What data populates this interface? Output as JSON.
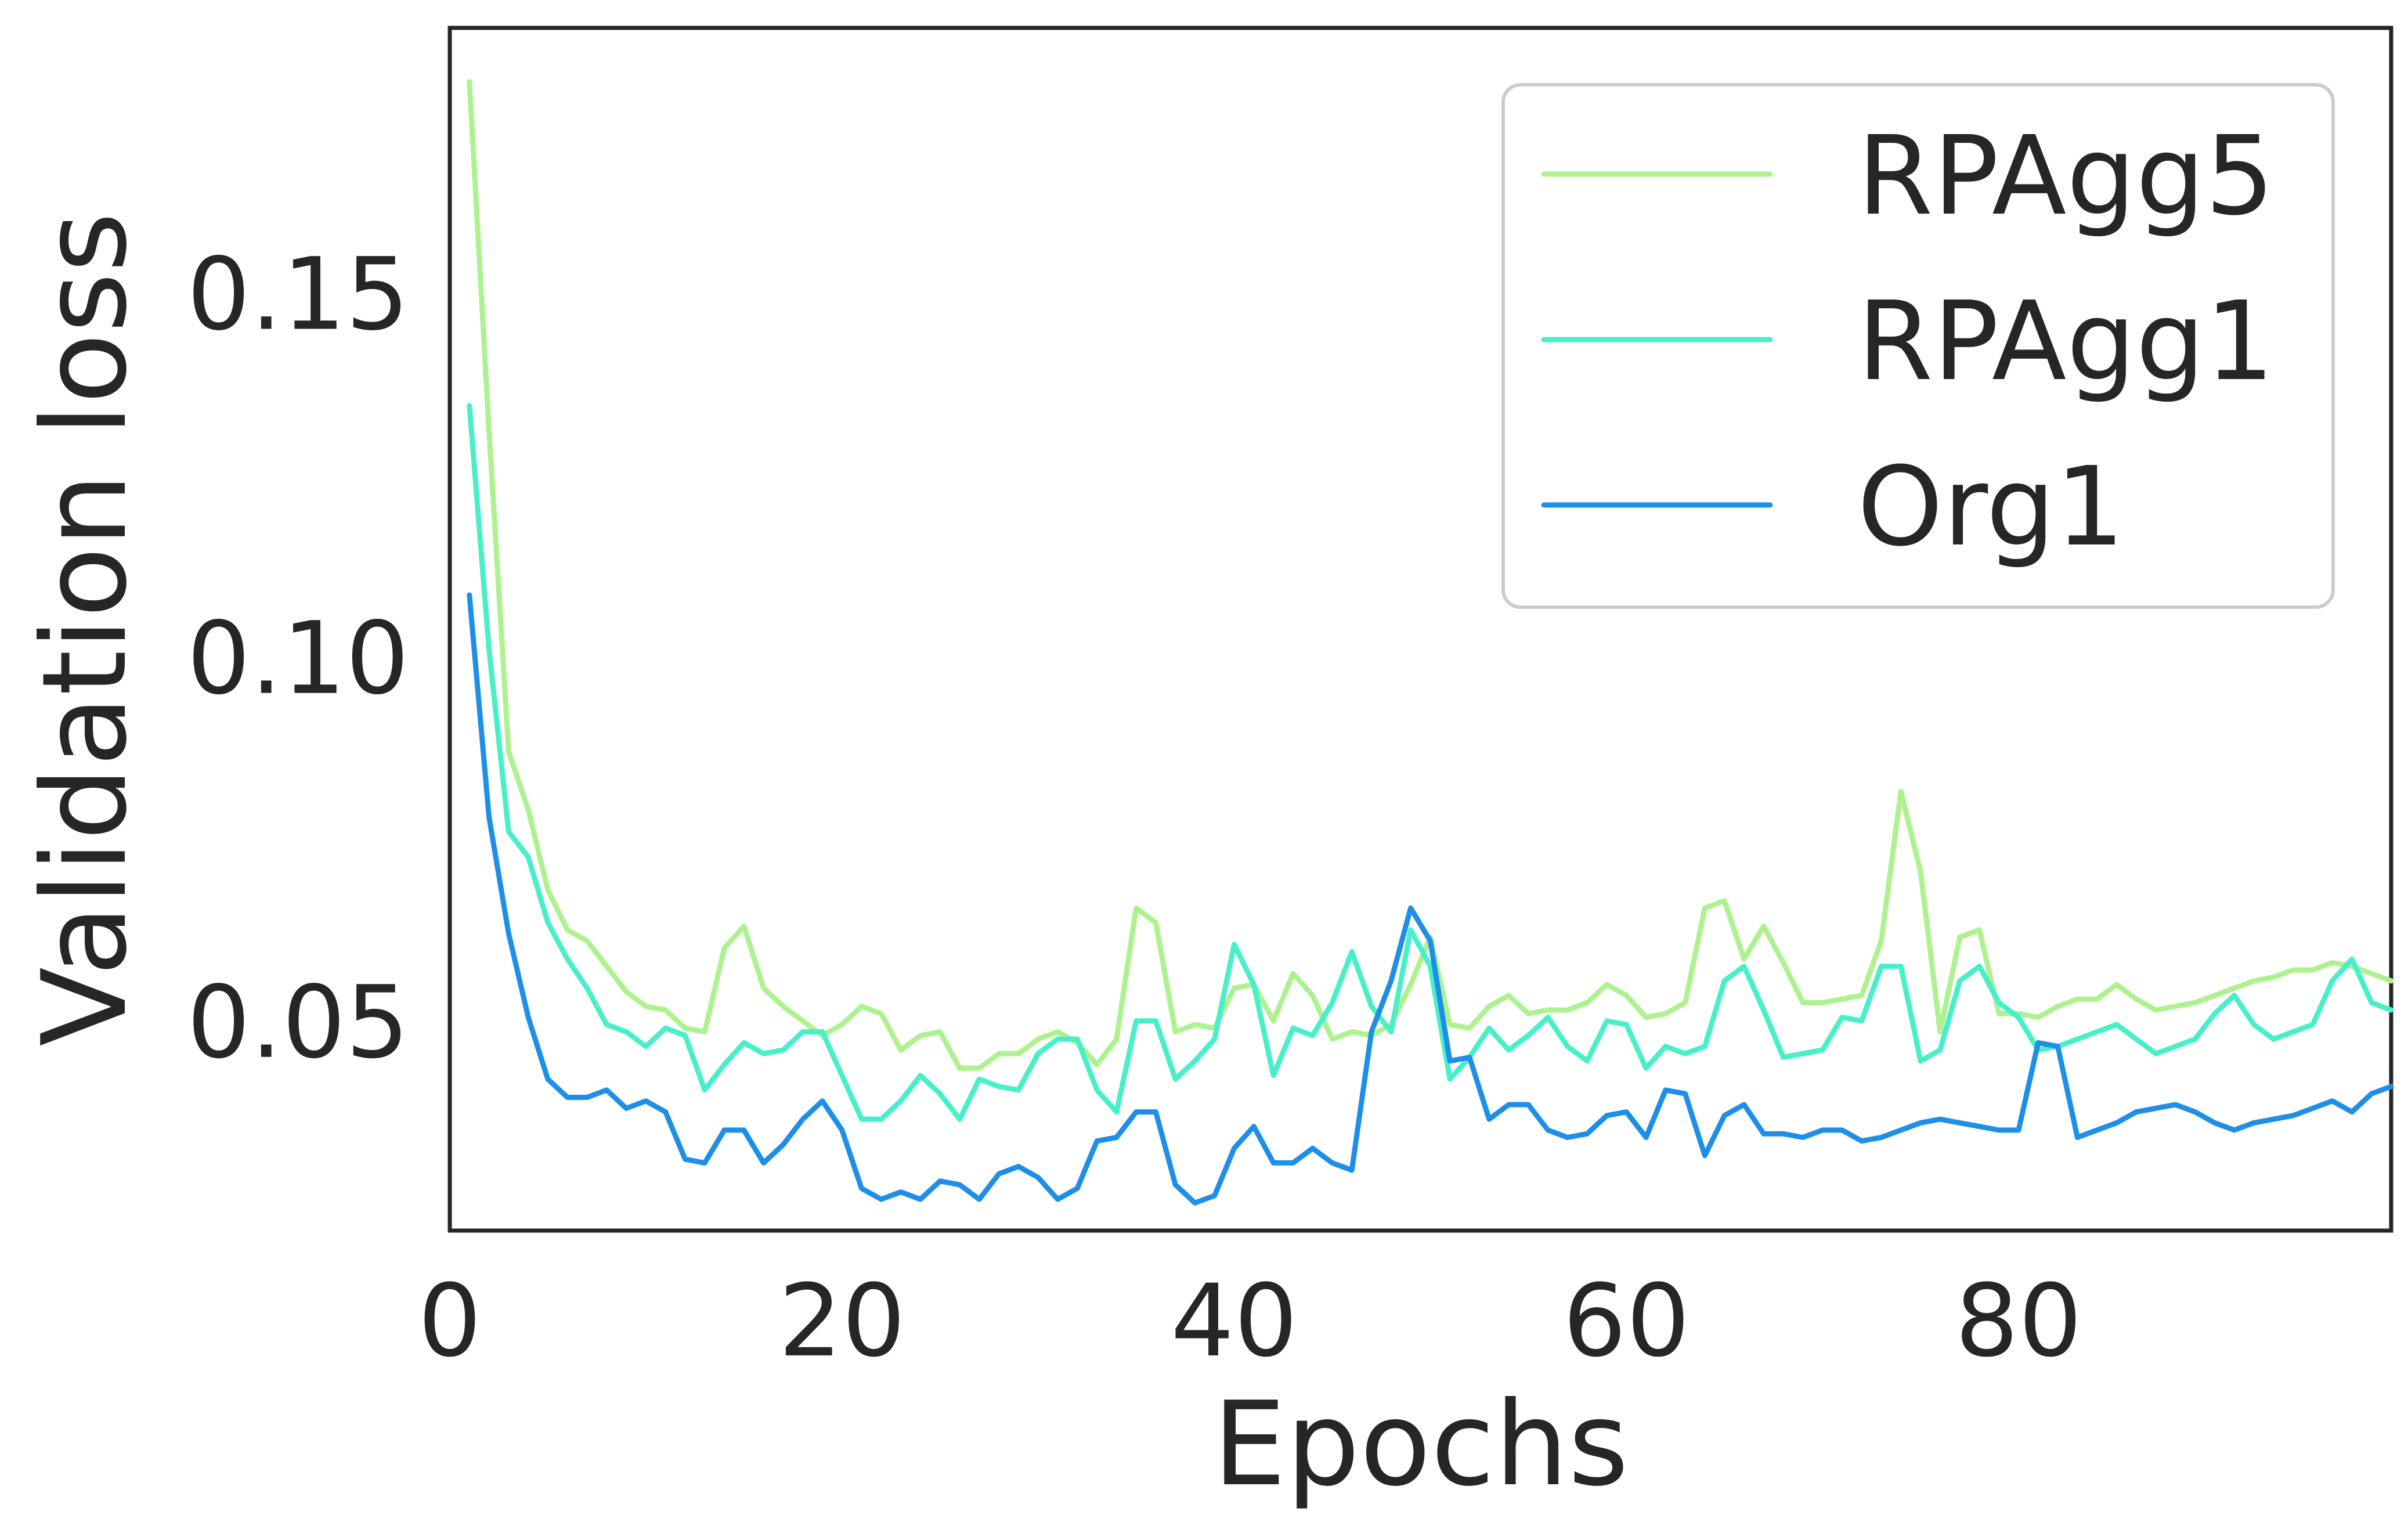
{
  "chart_data": {
    "type": "line",
    "title": "",
    "xlabel": "Epochs",
    "ylabel": "Validation loss",
    "xlim": [
      0,
      99
    ],
    "ylim": [
      0.0212,
      0.1864
    ],
    "xticks": [
      0,
      20,
      40,
      60,
      80
    ],
    "xtick_labels": [
      "0",
      "20",
      "40",
      "60",
      "80"
    ],
    "yticks": [
      0.05,
      0.1,
      0.15
    ],
    "ytick_labels": [
      "0.05",
      "0.10",
      "0.15"
    ],
    "grid": false,
    "legend_position": "top-right",
    "series": [
      {
        "name": "RPAgg5",
        "color": "#ADF28F",
        "x": [
          1,
          2,
          3,
          4,
          5,
          6,
          7,
          8,
          9,
          10,
          11,
          12,
          13,
          14,
          15,
          16,
          17,
          18,
          19,
          20,
          21,
          22,
          23,
          24,
          25,
          26,
          27,
          28,
          29,
          30,
          31,
          32,
          33,
          34,
          35,
          36,
          37,
          38,
          39,
          40,
          41,
          42,
          43,
          44,
          45,
          46,
          47,
          48,
          49,
          50,
          51,
          52,
          53,
          54,
          55,
          56,
          57,
          58,
          59,
          60,
          61,
          62,
          63,
          64,
          65,
          66,
          67,
          68,
          69,
          70,
          71,
          72,
          73,
          74,
          75,
          76,
          77,
          78,
          79,
          80,
          81,
          82,
          83,
          84,
          85,
          86,
          87,
          88,
          89,
          90,
          91,
          92,
          93,
          94,
          95,
          96,
          97,
          98,
          99
        ],
        "values": [
          0.179,
          0.131,
          0.087,
          0.079,
          0.068,
          0.0625,
          0.061,
          0.0575,
          0.054,
          0.052,
          0.0515,
          0.049,
          0.0485,
          0.06,
          0.063,
          0.0545,
          0.052,
          0.05,
          0.048,
          0.0495,
          0.052,
          0.051,
          0.046,
          0.048,
          0.0485,
          0.0435,
          0.0435,
          0.0455,
          0.0455,
          0.0475,
          0.0485,
          0.047,
          0.044,
          0.0475,
          0.0655,
          0.0635,
          0.0485,
          0.0495,
          0.049,
          0.0545,
          0.055,
          0.05,
          0.0565,
          0.0535,
          0.0475,
          0.0485,
          0.048,
          0.0495,
          0.055,
          0.0615,
          0.0495,
          0.049,
          0.052,
          0.0535,
          0.051,
          0.0515,
          0.0515,
          0.0525,
          0.055,
          0.0535,
          0.0505,
          0.051,
          0.0525,
          0.0655,
          0.0665,
          0.0585,
          0.063,
          0.058,
          0.0525,
          0.0525,
          0.053,
          0.0535,
          0.061,
          0.0815,
          0.0705,
          0.0485,
          0.0615,
          0.0625,
          0.051,
          0.051,
          0.0505,
          0.052,
          0.053,
          0.053,
          0.055,
          0.053,
          0.0515,
          0.052,
          0.0525,
          0.0535,
          0.0545,
          0.0555,
          0.056,
          0.057,
          0.057,
          0.058,
          0.0575,
          0.0565,
          0.0555
        ]
      },
      {
        "name": "RPAgg1",
        "color": "#47F0C8",
        "x": [
          1,
          2,
          3,
          4,
          5,
          6,
          7,
          8,
          9,
          10,
          11,
          12,
          13,
          14,
          15,
          16,
          17,
          18,
          19,
          20,
          21,
          22,
          23,
          24,
          25,
          26,
          27,
          28,
          29,
          30,
          31,
          32,
          33,
          34,
          35,
          36,
          37,
          38,
          39,
          40,
          41,
          42,
          43,
          44,
          45,
          46,
          47,
          48,
          49,
          50,
          51,
          52,
          53,
          54,
          55,
          56,
          57,
          58,
          59,
          60,
          61,
          62,
          63,
          64,
          65,
          66,
          67,
          68,
          69,
          70,
          71,
          72,
          73,
          74,
          75,
          76,
          77,
          78,
          79,
          80,
          81,
          82,
          83,
          84,
          85,
          86,
          87,
          88,
          89,
          90,
          91,
          92,
          93,
          94,
          95,
          96,
          97,
          98,
          99
        ],
        "values": [
          0.1345,
          0.101,
          0.076,
          0.0725,
          0.0635,
          0.0585,
          0.0545,
          0.0495,
          0.0485,
          0.0465,
          0.049,
          0.048,
          0.0405,
          0.044,
          0.047,
          0.0455,
          0.046,
          0.0485,
          0.0485,
          0.0425,
          0.0365,
          0.0365,
          0.039,
          0.0425,
          0.04,
          0.0365,
          0.042,
          0.041,
          0.0405,
          0.0455,
          0.0475,
          0.0475,
          0.0405,
          0.0375,
          0.05,
          0.05,
          0.042,
          0.0445,
          0.0475,
          0.0605,
          0.055,
          0.0425,
          0.049,
          0.048,
          0.0525,
          0.0595,
          0.052,
          0.0485,
          0.0625,
          0.0575,
          0.042,
          0.045,
          0.049,
          0.046,
          0.048,
          0.0505,
          0.0465,
          0.0445,
          0.05,
          0.0495,
          0.0435,
          0.0465,
          0.0455,
          0.0465,
          0.0555,
          0.0575,
          0.0515,
          0.045,
          0.0455,
          0.046,
          0.0505,
          0.05,
          0.0575,
          0.0575,
          0.0445,
          0.046,
          0.0555,
          0.0575,
          0.0525,
          0.0505,
          0.046,
          0.0465,
          0.0475,
          0.0485,
          0.0495,
          0.0475,
          0.0455,
          0.0465,
          0.0475,
          0.051,
          0.0535,
          0.0495,
          0.0475,
          0.0485,
          0.0495,
          0.0555,
          0.0585,
          0.0525,
          0.0515
        ]
      },
      {
        "name": "Org1",
        "color": "#1E8FE8",
        "x": [
          1,
          2,
          3,
          4,
          5,
          6,
          7,
          8,
          9,
          10,
          11,
          12,
          13,
          14,
          15,
          16,
          17,
          18,
          19,
          20,
          21,
          22,
          23,
          24,
          25,
          26,
          27,
          28,
          29,
          30,
          31,
          32,
          33,
          34,
          35,
          36,
          37,
          38,
          39,
          40,
          41,
          42,
          43,
          44,
          45,
          46,
          47,
          48,
          49,
          50,
          51,
          52,
          53,
          54,
          55,
          56,
          57,
          58,
          59,
          60,
          61,
          62,
          63,
          64,
          65,
          66,
          67,
          68,
          69,
          70,
          71,
          72,
          73,
          74,
          75,
          76,
          77,
          78,
          79,
          80,
          81,
          82,
          83,
          84,
          85,
          86,
          87,
          88,
          89,
          90,
          91,
          92,
          93,
          94,
          95,
          96,
          97,
          98,
          99
        ],
        "values": [
          0.1085,
          0.078,
          0.062,
          0.0505,
          0.042,
          0.0395,
          0.0395,
          0.0405,
          0.038,
          0.039,
          0.0375,
          0.031,
          0.0305,
          0.035,
          0.035,
          0.0305,
          0.033,
          0.0365,
          0.039,
          0.035,
          0.027,
          0.0255,
          0.0265,
          0.0255,
          0.028,
          0.0275,
          0.0255,
          0.029,
          0.03,
          0.0285,
          0.0255,
          0.027,
          0.0335,
          0.034,
          0.0375,
          0.0375,
          0.0275,
          0.025,
          0.026,
          0.0325,
          0.0355,
          0.0305,
          0.0305,
          0.0325,
          0.0305,
          0.0295,
          0.0485,
          0.0555,
          0.0655,
          0.061,
          0.0445,
          0.045,
          0.0365,
          0.0385,
          0.0385,
          0.035,
          0.034,
          0.0345,
          0.037,
          0.0375,
          0.034,
          0.0405,
          0.04,
          0.0315,
          0.037,
          0.0385,
          0.0345,
          0.0345,
          0.034,
          0.035,
          0.035,
          0.0335,
          0.034,
          0.035,
          0.036,
          0.0365,
          0.036,
          0.0355,
          0.035,
          0.035,
          0.047,
          0.0465,
          0.034,
          0.035,
          0.036,
          0.0375,
          0.038,
          0.0385,
          0.0375,
          0.036,
          0.035,
          0.036,
          0.0365,
          0.037,
          0.038,
          0.039,
          0.0375,
          0.04,
          0.041
        ]
      }
    ]
  }
}
